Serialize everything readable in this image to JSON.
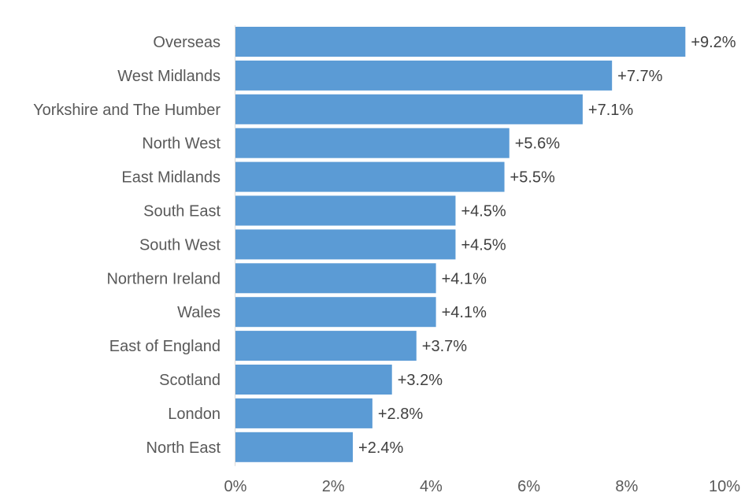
{
  "chart_data": {
    "type": "bar",
    "orientation": "horizontal",
    "categories": [
      "Overseas",
      "West Midlands",
      "Yorkshire and The Humber",
      "North West",
      "East Midlands",
      "South East",
      "South West",
      "Northern Ireland",
      "Wales",
      "East of England",
      "Scotland",
      "London",
      "North East"
    ],
    "values": [
      9.2,
      7.7,
      7.1,
      5.6,
      5.5,
      4.5,
      4.5,
      4.1,
      4.1,
      3.7,
      3.2,
      2.8,
      2.4
    ],
    "value_labels": [
      "+9.2%",
      "+7.7%",
      "+7.1%",
      "+5.6%",
      "+5.5%",
      "+4.5%",
      "+4.5%",
      "+4.1%",
      "+4.1%",
      "+3.7%",
      "+3.2%",
      "+2.8%",
      "+2.4%"
    ],
    "xlim": [
      0,
      10
    ],
    "x_ticks": [
      0,
      2,
      4,
      6,
      8,
      10
    ],
    "x_tick_labels": [
      "0%",
      "2%",
      "4%",
      "6%",
      "8%",
      "10%"
    ],
    "title": "",
    "xlabel": "",
    "ylabel": "",
    "grid": false,
    "legend": "none",
    "bar_color": "#5B9BD5"
  }
}
